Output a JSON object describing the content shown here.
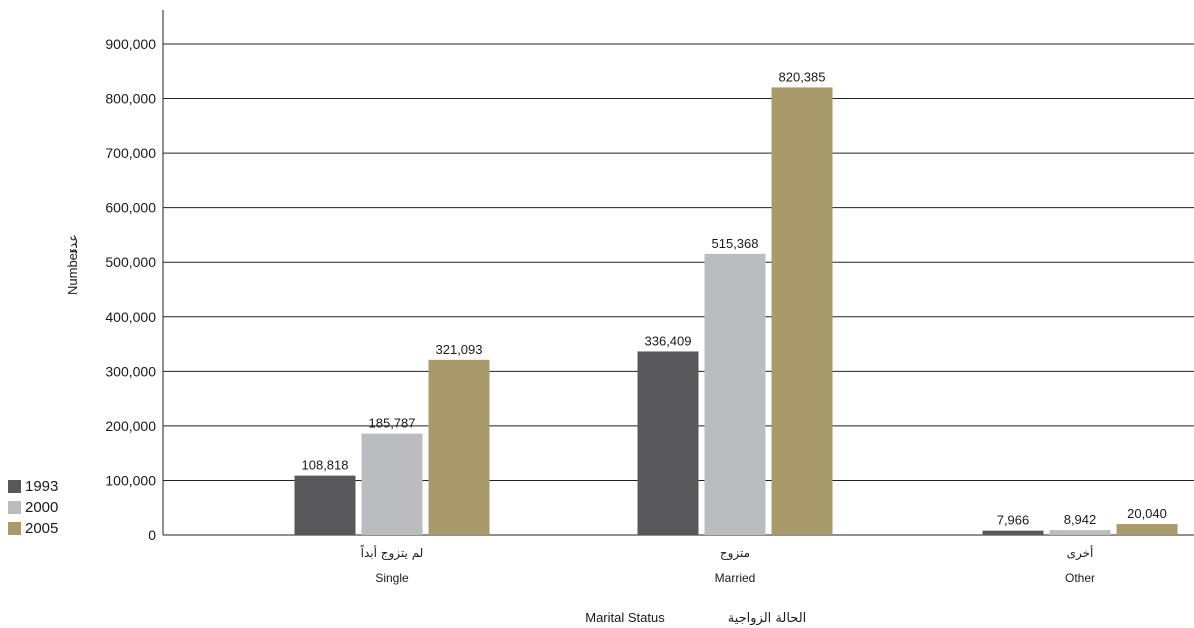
{
  "chart_data": {
    "type": "bar",
    "categories": [
      "Single",
      "Married",
      "Other"
    ],
    "categories_ar": [
      "لم يتزوج أبداً",
      "متزوج",
      "أخرى"
    ],
    "series": [
      {
        "name": "1993",
        "color": "#58585a",
        "values": [
          108818,
          336409,
          7966
        ]
      },
      {
        "name": "2000",
        "color": "#bbbcbf",
        "values": [
          185787,
          515368,
          8942
        ]
      },
      {
        "name": "2005",
        "color": "#a89a6a",
        "values": [
          321093,
          820385,
          20040
        ]
      }
    ],
    "value_labels": [
      [
        "108,818",
        "336,409",
        "7,966"
      ],
      [
        "185,787",
        "515,368",
        "8,942"
      ],
      [
        "321,093",
        "820,385",
        "20,040"
      ]
    ],
    "yticks": [
      "0",
      "100,000",
      "200,000",
      "300,000",
      "400,000",
      "500,000",
      "600,000",
      "700,000",
      "800,000",
      "900,000"
    ],
    "ylim": [
      0,
      900000
    ],
    "ylabel": "Number",
    "ylabel_ar": "عدد",
    "xlabel": "Marital Status",
    "xlabel_ar": "الحالة الزواجية",
    "grid": true,
    "legend_position": "bottom-left"
  }
}
